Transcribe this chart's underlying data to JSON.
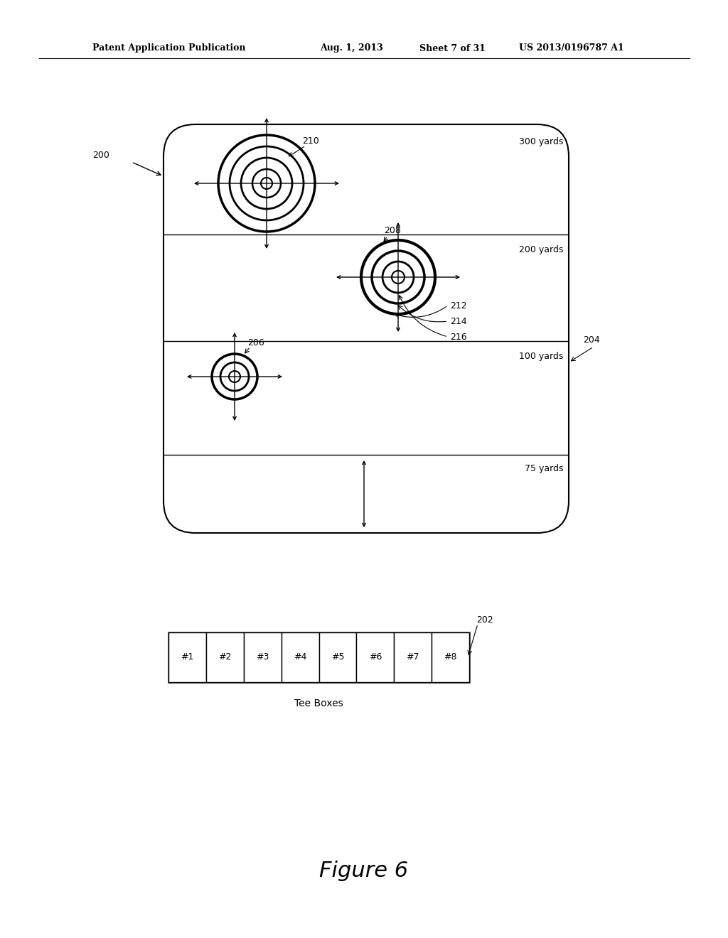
{
  "bg_color": "#ffffff",
  "fig_w": 10.24,
  "fig_h": 13.2,
  "header_text1": "Patent Application Publication",
  "header_text2": "Aug. 1, 2013",
  "header_text3": "Sheet 7 of 31",
  "header_text4": "US 2013/0196787 A1",
  "figure_label": "Figure 6",
  "ref_200": "200",
  "ref_202": "202",
  "ref_204": "204",
  "ref_206": "206",
  "ref_208": "208",
  "ref_210": "210",
  "ref_212": "212",
  "ref_214": "214",
  "ref_216": "216",
  "label_300": "300 yards",
  "label_200": "200 yards",
  "label_100": "100 yards",
  "label_75": "75 yards",
  "tee_boxes_label": "Tee Boxes",
  "tee_box_labels": [
    "#1",
    "#2",
    "#3",
    "#4",
    "#5",
    "#6",
    "#7",
    "#8"
  ],
  "note_fontsize": 9,
  "header_fontsize": 9
}
